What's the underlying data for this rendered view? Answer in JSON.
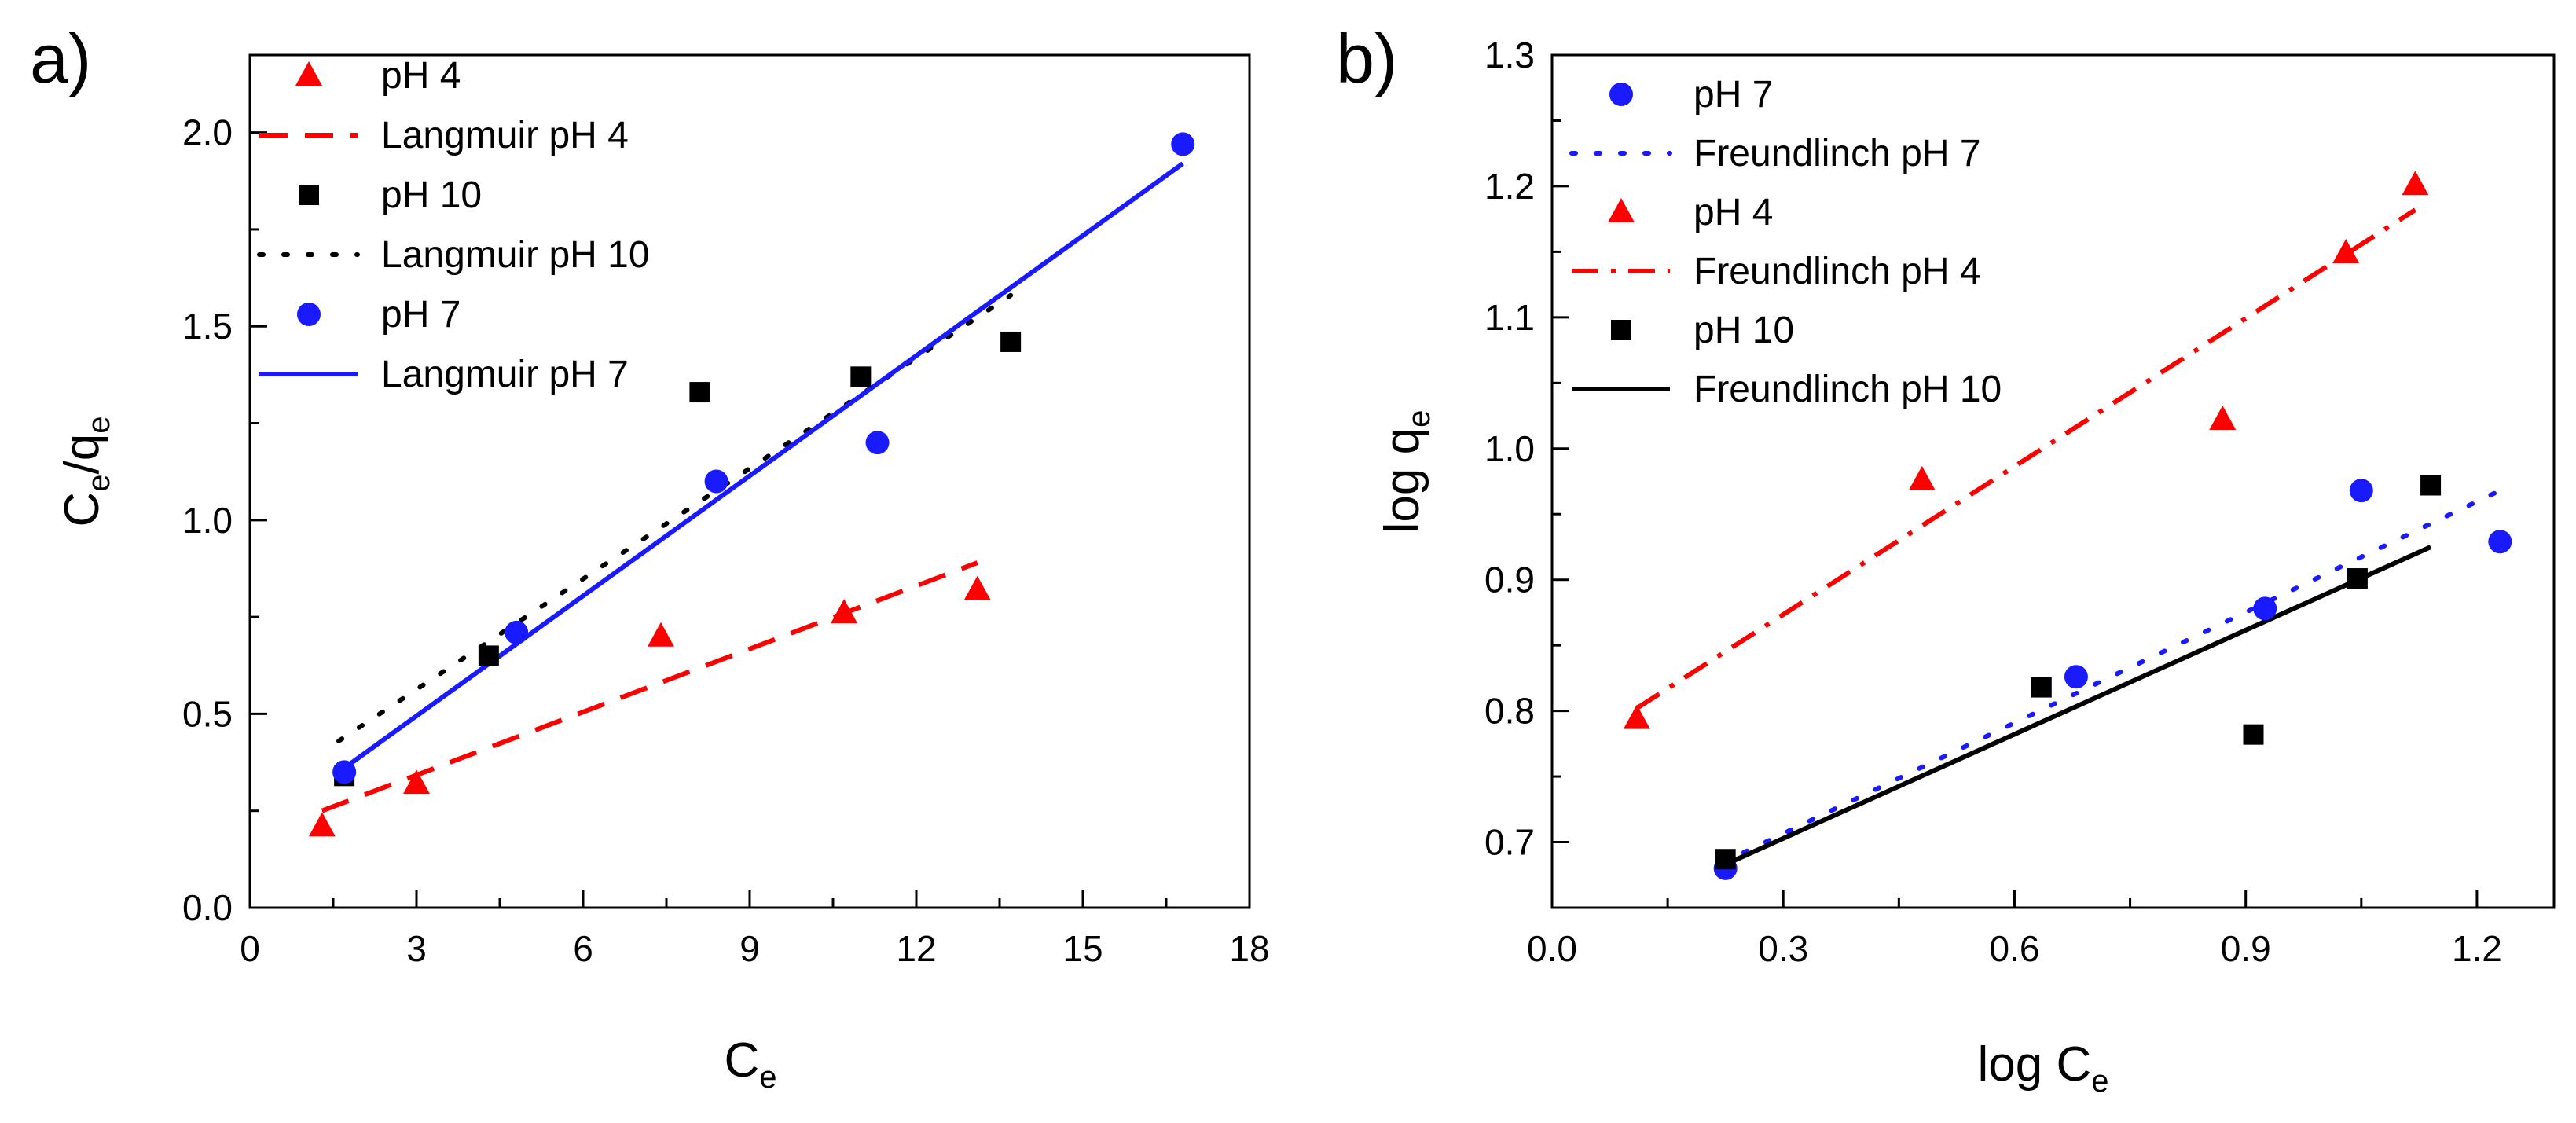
{
  "colors": {
    "red": "#ff0000",
    "blue": "#1a1aff",
    "black": "#000000"
  },
  "chart_data": [
    {
      "type": "scatter",
      "panel_label": "a)",
      "xlabel": "C",
      "xlabel_sub": "e",
      "ylabel_main": "C",
      "ylabel_sub": "e",
      "ylabel_slash": "/q",
      "ylabel_sub2": "e",
      "xlim": [
        0,
        18
      ],
      "ylim": [
        0,
        2.2
      ],
      "xticks": [
        0,
        3,
        6,
        9,
        12,
        15,
        18
      ],
      "xtick_labels": [
        "0",
        "3",
        "6",
        "9",
        "12",
        "15",
        "18"
      ],
      "yticks": [
        0,
        0.5,
        1.0,
        1.5,
        2.0
      ],
      "ytick_labels": [
        "0.0",
        "0.5",
        "1.0",
        "1.5",
        "2.0"
      ],
      "legend_position": "top-left",
      "series": [
        {
          "name": "pH 4",
          "kind": "marker",
          "marker": "triangle",
          "color": "#ff0000",
          "points": [
            [
              1.3,
              0.21
            ],
            [
              3.0,
              0.32
            ],
            [
              7.4,
              0.7
            ],
            [
              10.7,
              0.76
            ],
            [
              13.1,
              0.82
            ]
          ]
        },
        {
          "name": "Langmuir pH 4",
          "kind": "line",
          "dash": "dashed",
          "color": "#ff0000",
          "points": [
            [
              1.3,
              0.25
            ],
            [
              13.1,
              0.89
            ]
          ]
        },
        {
          "name": "pH 10",
          "kind": "marker",
          "marker": "square",
          "color": "#000000",
          "points": [
            [
              1.7,
              0.34
            ],
            [
              4.3,
              0.65
            ],
            [
              8.1,
              1.33
            ],
            [
              11.0,
              1.37
            ],
            [
              13.7,
              1.46
            ]
          ]
        },
        {
          "name": "Langmuir pH 10",
          "kind": "line",
          "dash": "dotted",
          "color": "#000000",
          "points": [
            [
              1.6,
              0.43
            ],
            [
              13.7,
              1.58
            ]
          ]
        },
        {
          "name": "pH 7",
          "kind": "marker",
          "marker": "circle",
          "color": "#1a1aff",
          "points": [
            [
              1.7,
              0.35
            ],
            [
              4.8,
              0.71
            ],
            [
              8.4,
              1.1
            ],
            [
              11.3,
              1.2
            ],
            [
              16.8,
              1.97
            ]
          ]
        },
        {
          "name": "Langmuir pH 7",
          "kind": "line",
          "dash": "solid",
          "color": "#1a1aff",
          "points": [
            [
              1.6,
              0.35
            ],
            [
              16.8,
              1.92
            ]
          ]
        }
      ]
    },
    {
      "type": "scatter",
      "panel_label": "b)",
      "xlabel": "log C",
      "xlabel_sub": "e",
      "ylabel_main": "log q",
      "ylabel_sub": "e",
      "xlim": [
        0.0,
        1.3
      ],
      "ylim": [
        0.65,
        1.3
      ],
      "xticks": [
        0.0,
        0.3,
        0.6,
        0.9,
        1.2
      ],
      "xtick_labels": [
        "0.0",
        "0.3",
        "0.6",
        "0.9",
        "1.2"
      ],
      "yticks": [
        0.7,
        0.8,
        0.9,
        1.0,
        1.1,
        1.2,
        1.3
      ],
      "ytick_labels": [
        "0.7",
        "0.8",
        "0.9",
        "1.0",
        "1.1",
        "1.2",
        "1.3"
      ],
      "legend_position": "top-left",
      "series": [
        {
          "name": "pH 7",
          "kind": "marker",
          "marker": "circle",
          "color": "#1a1aff",
          "points": [
            [
              0.225,
              0.68
            ],
            [
              0.68,
              0.826
            ],
            [
              0.925,
              0.878
            ],
            [
              1.05,
              0.968
            ],
            [
              1.23,
              0.929
            ]
          ]
        },
        {
          "name": "Freundlinch pH 7",
          "kind": "line",
          "dash": "dotted",
          "color": "#1a1aff",
          "points": [
            [
              0.22,
              0.684
            ],
            [
              1.23,
              0.968
            ]
          ]
        },
        {
          "name": "pH 4",
          "kind": "marker",
          "marker": "triangle",
          "color": "#ff0000",
          "points": [
            [
              0.11,
              0.794
            ],
            [
              0.48,
              0.976
            ],
            [
              0.87,
              1.022
            ],
            [
              1.03,
              1.149
            ],
            [
              1.12,
              1.201
            ]
          ]
        },
        {
          "name": "Freundlinch pH 4",
          "kind": "line",
          "dash": "dashdot",
          "color": "#ff0000",
          "points": [
            [
              0.11,
              0.802
            ],
            [
              1.12,
              1.182
            ]
          ]
        },
        {
          "name": "pH 10",
          "kind": "marker",
          "marker": "square",
          "color": "#000000",
          "points": [
            [
              0.225,
              0.687
            ],
            [
              0.635,
              0.818
            ],
            [
              0.91,
              0.782
            ],
            [
              1.045,
              0.901
            ],
            [
              1.14,
              0.972
            ]
          ]
        },
        {
          "name": "Freundlinch pH 10",
          "kind": "line",
          "dash": "solid",
          "color": "#000000",
          "points": [
            [
              0.225,
              0.683
            ],
            [
              1.14,
              0.925
            ]
          ]
        }
      ]
    }
  ]
}
